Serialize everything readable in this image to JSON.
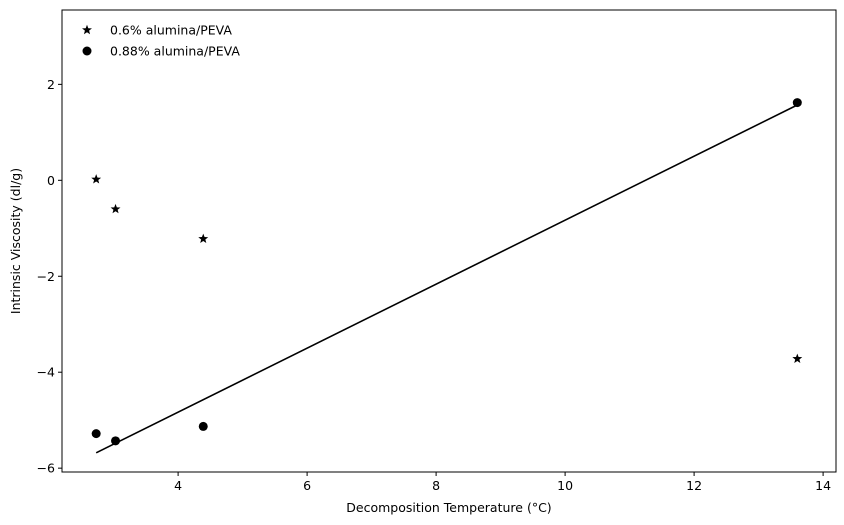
{
  "chart_data": {
    "type": "scatter",
    "xlabel": "Decomposition Temperature (°C)",
    "ylabel": "Intrinsic Viscosity (dl/g)",
    "xlim": [
      2.2,
      14.2
    ],
    "ylim": [
      -6.08,
      3.55
    ],
    "x_ticks": [
      4,
      6,
      8,
      10,
      12,
      14
    ],
    "y_ticks": [
      -6,
      -4,
      -2,
      0,
      2
    ],
    "x_tick_labels": [
      "4",
      "6",
      "8",
      "10",
      "12",
      "14"
    ],
    "y_tick_labels": [
      "−6",
      "−4",
      "−2",
      "0",
      "2"
    ],
    "grid": false,
    "legend_position": "top-left",
    "series": [
      {
        "name": "0.6% alumina/PEVA",
        "marker": "star",
        "color": "#000000",
        "points": [
          {
            "x": 2.73,
            "y": 0.02
          },
          {
            "x": 3.03,
            "y": -0.6
          },
          {
            "x": 4.39,
            "y": -1.22
          },
          {
            "x": 13.6,
            "y": -3.72
          }
        ]
      },
      {
        "name": "0.88% alumina/PEVA",
        "marker": "circle",
        "color": "#000000",
        "points": [
          {
            "x": 2.73,
            "y": -5.28
          },
          {
            "x": 3.03,
            "y": -5.43
          },
          {
            "x": 4.39,
            "y": -5.13
          },
          {
            "x": 13.6,
            "y": 1.62
          }
        ]
      }
    ],
    "fit_line": {
      "color": "#000000",
      "points": [
        {
          "x": 2.73,
          "y": -5.68
        },
        {
          "x": 13.6,
          "y": 1.57
        }
      ]
    }
  }
}
